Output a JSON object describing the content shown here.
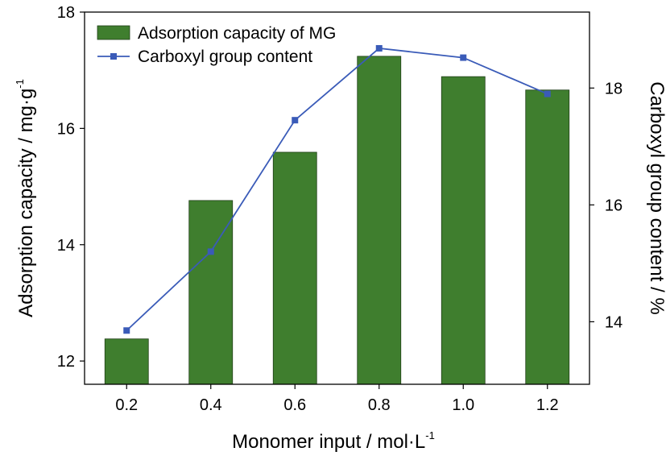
{
  "chart_data": {
    "type": "bar",
    "categories": [
      "0.2",
      "0.4",
      "0.6",
      "0.8",
      "1.0",
      "1.2"
    ],
    "series": [
      {
        "name": "Adsorption capacity of MG",
        "kind": "bar",
        "axis": "left",
        "color": "#3f7e2e",
        "values": [
          12.38,
          14.76,
          15.59,
          17.24,
          16.89,
          16.66
        ]
      },
      {
        "name": "Carboxyl group content",
        "kind": "line",
        "axis": "right",
        "color": "#3a5bb8",
        "marker": "square",
        "values": [
          13.85,
          15.2,
          17.45,
          18.68,
          18.52,
          17.9
        ]
      }
    ],
    "xlabel": {
      "main": "Monomer input / mol·L",
      "sup": "-1"
    },
    "ylabel_left": {
      "main": "Adsorption capacity / mg·g",
      "sup": "-1"
    },
    "ylabel_right": "Carboxyl group content / %",
    "ylim_left": [
      11.6,
      18
    ],
    "ylim_right": [
      12.93,
      19.3
    ],
    "yticks_left": [
      "12",
      "14",
      "16",
      "18"
    ],
    "yticks_right": [
      "14",
      "16",
      "18"
    ],
    "legend_position": "top-left",
    "grid": false
  }
}
